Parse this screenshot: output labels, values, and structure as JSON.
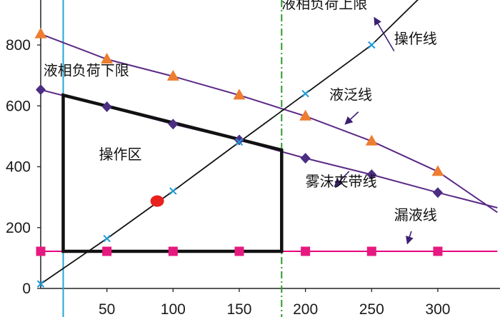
{
  "chart_data": {
    "type": "line",
    "xlim": [
      -3,
      345
    ],
    "ylim": [
      -15,
      955
    ],
    "x_ticks": [
      50,
      100,
      150,
      200,
      250,
      300
    ],
    "x_tick_labels": [
      "50",
      "100",
      "150",
      "200",
      "250",
      "300"
    ],
    "y_ticks": [
      0,
      200,
      400,
      600,
      800
    ],
    "y_tick_labels": [
      "0",
      "200",
      "400",
      "600",
      "800"
    ],
    "grid": false,
    "legend": "none",
    "series": [
      {
        "name": "液泛线",
        "color": "#5b2a86",
        "marker": "triangle",
        "marker_color": "#ed7d31",
        "points": [
          [
            0,
            836
          ],
          [
            50,
            753
          ],
          [
            100,
            697
          ],
          [
            150,
            635
          ],
          [
            200,
            566
          ],
          [
            250,
            484
          ],
          [
            300,
            384
          ]
        ],
        "line_end": [
          345,
          250
        ]
      },
      {
        "name": "雾沫夹带线",
        "color": "#5b2a86",
        "marker": "diamond",
        "marker_color": "#4b2e83",
        "points": [
          [
            0,
            653
          ],
          [
            50,
            597
          ],
          [
            100,
            540
          ],
          [
            150,
            488
          ],
          [
            200,
            428
          ],
          [
            250,
            374
          ],
          [
            300,
            315
          ]
        ],
        "line_end": [
          345,
          265
        ]
      },
      {
        "name": "漏液线",
        "color": "#e6007e",
        "marker": "square",
        "marker_color": "#e6197f",
        "points": [
          [
            0,
            122
          ],
          [
            50,
            122
          ],
          [
            100,
            122
          ],
          [
            150,
            122
          ],
          [
            200,
            122
          ],
          [
            250,
            122
          ],
          [
            300,
            122
          ]
        ],
        "line_end": [
          345,
          122
        ]
      },
      {
        "name": "操作线",
        "color": "#111111",
        "marker": "x",
        "marker_color": "#1f9bd8",
        "points": [
          [
            0,
            15
          ],
          [
            50,
            164
          ],
          [
            100,
            320
          ],
          [
            150,
            481
          ],
          [
            200,
            640
          ],
          [
            250,
            800
          ]
        ],
        "line_start": [
          0,
          15
        ],
        "line_end": [
          297,
          1000
        ]
      }
    ],
    "vlines": [
      {
        "name": "液相负荷下限",
        "x": 17,
        "color": "#22a7d8",
        "style": "solid"
      },
      {
        "name": "液相负荷上限",
        "x": 182,
        "color": "#2e9b2e",
        "style": "dashdot"
      }
    ],
    "region": {
      "name": "操作区",
      "polygon": [
        [
          17,
          635
        ],
        [
          17,
          122
        ],
        [
          182,
          122
        ],
        [
          182,
          455
        ]
      ],
      "color": "#111111"
    },
    "operating_point": {
      "x": 88,
      "y": 287,
      "color": "#e8211f"
    },
    "annotations": [
      {
        "text": "液相负荷上限",
        "x": 182,
        "y": 920
      },
      {
        "text": "操作线",
        "x": 267,
        "y": 805
      },
      {
        "text": "液相负荷下限",
        "x": 2,
        "y": 700
      },
      {
        "text": "液泛线",
        "x": 218,
        "y": 620
      },
      {
        "text": "操作区",
        "x": 44,
        "y": 425
      },
      {
        "text": "雾沫夹带线",
        "x": 200,
        "y": 335
      },
      {
        "text": "漏液线",
        "x": 267,
        "y": 225
      }
    ],
    "arrows": [
      {
        "from": [
          267,
          780
        ],
        "to": [
          252,
          890
        ]
      },
      {
        "from": [
          240,
          580
        ],
        "to": [
          230,
          540
        ]
      },
      {
        "from": [
          233,
          385
        ],
        "to": [
          222,
          335
        ]
      },
      {
        "from": [
          280,
          188
        ],
        "to": [
          277,
          147
        ]
      }
    ]
  }
}
